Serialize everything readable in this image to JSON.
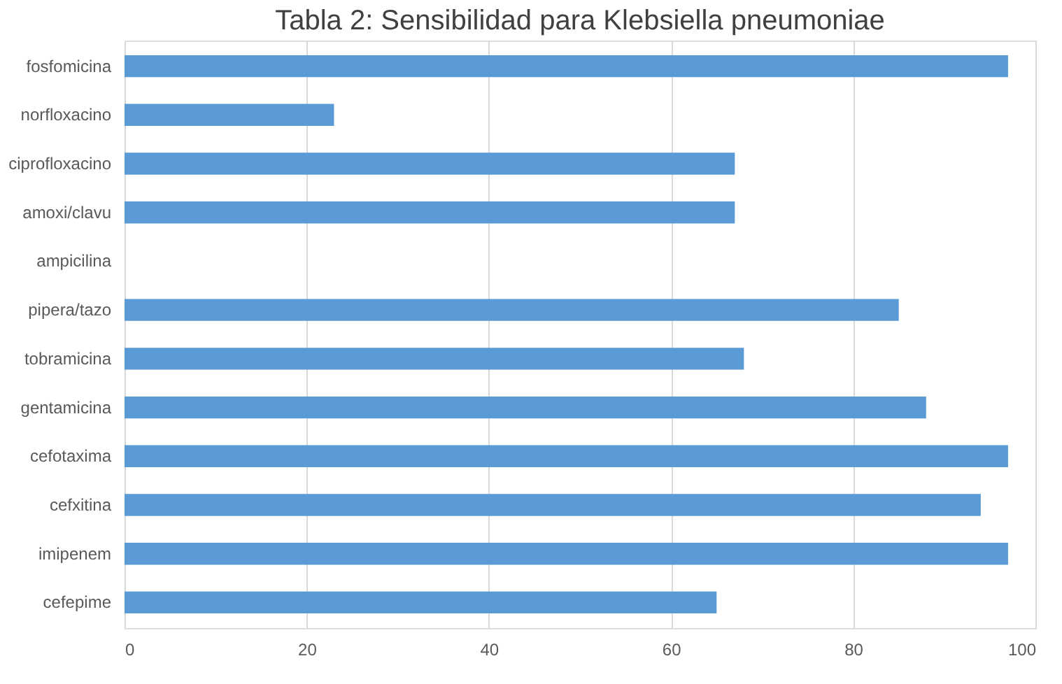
{
  "chart_data": {
    "type": "bar",
    "orientation": "horizontal",
    "title": "Tabla 2: Sensibilidad para Klebsiella pneumoniae",
    "categories": [
      "fosfomicina",
      "norfloxacino",
      "ciprofloxacino",
      "amoxi/clavu",
      "ampicilina",
      "pipera/tazo",
      "tobramicina",
      "gentamicina",
      "cefotaxima",
      "cefxitina",
      "imipenem",
      "cefepime"
    ],
    "values": [
      97,
      23,
      67,
      67,
      0,
      85,
      68,
      88,
      97,
      94,
      97,
      65
    ],
    "color": "#5b9bd5",
    "xlim": [
      0,
      100
    ],
    "xticks": [
      0,
      20,
      40,
      60,
      80,
      100
    ],
    "grid": "x"
  }
}
